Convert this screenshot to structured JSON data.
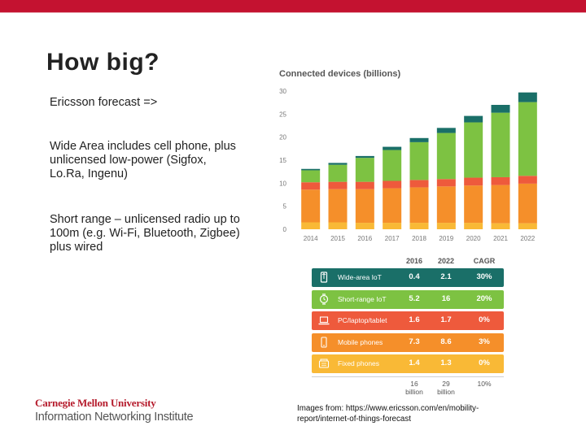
{
  "slide": {
    "title": "How big?",
    "bullets": [
      "Ericsson forecast =>",
      "Wide Area includes cell phone, plus unlicensed low-power (Sigfox, Lo.Ra, Ingenu)",
      "Short range – unlicensed radio up to 100m (e.g. Wi-Fi, Bluetooth, Zigbee) plus wired"
    ],
    "caption": "Images from: https://www.ericsson.com/en/mobility-report/internet-of-things-forecast",
    "logo": {
      "line1": "Carnegie Mellon University",
      "line2": "Information Networking Institute"
    }
  },
  "colors": {
    "brand_red": "#c41230",
    "wide_area_iot": "#1a6f68",
    "short_range_iot": "#7dc242",
    "pc_laptop_tablet": "#ee5a3c",
    "mobile_phones": "#f58f2a",
    "fixed_phones": "#f9b936"
  },
  "chart_data": {
    "type": "bar",
    "stacked": true,
    "title": "Connected devices (billions)",
    "categories": [
      "2014",
      "2015",
      "2016",
      "2017",
      "2018",
      "2019",
      "2020",
      "2021",
      "2022"
    ],
    "y_ticks": [
      "0",
      "5",
      "10",
      "15",
      "20",
      "25",
      "30"
    ],
    "ylim": [
      0,
      30
    ],
    "series": [
      {
        "name": "Fixed phones",
        "color": "#f9b936",
        "values": [
          1.5,
          1.5,
          1.4,
          1.4,
          1.4,
          1.4,
          1.4,
          1.3,
          1.3
        ]
      },
      {
        "name": "Mobile phones",
        "color": "#f58f2a",
        "values": [
          7.1,
          7.2,
          7.3,
          7.5,
          7.7,
          7.9,
          8.1,
          8.3,
          8.6
        ]
      },
      {
        "name": "PC/laptop/tablet",
        "color": "#ee5a3c",
        "values": [
          1.6,
          1.6,
          1.6,
          1.6,
          1.6,
          1.6,
          1.7,
          1.7,
          1.7
        ]
      },
      {
        "name": "Short-range IoT",
        "color": "#7dc242",
        "values": [
          2.6,
          3.7,
          5.2,
          6.7,
          8.2,
          10.0,
          12.0,
          14.0,
          16.0
        ]
      },
      {
        "name": "Wide-area IoT",
        "color": "#1a6f68",
        "values": [
          0.3,
          0.4,
          0.4,
          0.7,
          0.9,
          1.1,
          1.4,
          1.7,
          2.1
        ]
      }
    ],
    "table": {
      "headers": [
        "2016",
        "2022",
        "CAGR"
      ],
      "rows": [
        {
          "label": "Wide-area IoT",
          "icon": "cell-tower-icon",
          "color": "#1a6f68",
          "v2016": "0.4",
          "v2022": "2.1",
          "cagr": "30%"
        },
        {
          "label": "Short-range IoT",
          "icon": "watch-icon",
          "color": "#7dc242",
          "v2016": "5.2",
          "v2022": "16",
          "cagr": "20%"
        },
        {
          "label": "PC/laptop/tablet",
          "icon": "laptop-icon",
          "color": "#ee5a3c",
          "v2016": "1.6",
          "v2022": "1.7",
          "cagr": "0%"
        },
        {
          "label": "Mobile phones",
          "icon": "mobile-phone-icon",
          "color": "#f58f2a",
          "v2016": "7.3",
          "v2022": "8.6",
          "cagr": "3%"
        },
        {
          "label": "Fixed phones",
          "icon": "desk-phone-icon",
          "color": "#f9b936",
          "v2016": "1.4",
          "v2022": "1.3",
          "cagr": "0%"
        }
      ],
      "totals": {
        "v2016": "16",
        "v2022": "29",
        "unit": "billion",
        "cagr": "10%"
      }
    }
  }
}
